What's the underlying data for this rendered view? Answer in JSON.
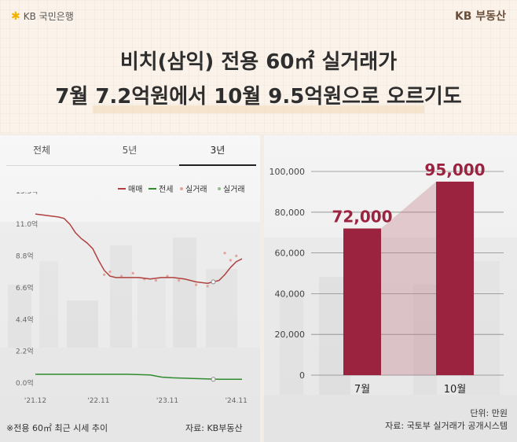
{
  "header": {
    "bank_logo": "KB 국민은행",
    "brand_logo": "KB 부동산",
    "title_line1": "비치(삼익) 전용 60㎡ 실거래가",
    "title_line2": "7월 7.2억원에서 10월 9.5억원으로 오르기도"
  },
  "tabs": [
    "전체",
    "5년",
    "3년"
  ],
  "active_tab": "3년",
  "legend": {
    "items": [
      {
        "label": "매매",
        "color": "#b0413e",
        "style": "line"
      },
      {
        "label": "전세",
        "color": "#2e8b2e",
        "style": "line"
      },
      {
        "label": "실거래",
        "color": "#e3a39a",
        "style": "dot"
      },
      {
        "label": "실거래",
        "color": "#8fbf8f",
        "style": "dot"
      }
    ]
  },
  "left_footer": {
    "note": "※전용 60㎡ 최근 시세 추이",
    "source": "자료: KB부동산"
  },
  "right_footer": {
    "unit": "단위: 만원",
    "source": "자료: 국토부 실거래가 공개시스템"
  },
  "colors": {
    "bar": "#9c2340",
    "bar_label": "#9c2340",
    "sale_line": "#b0413e",
    "jeonse_line": "#2e8b2e"
  },
  "chart_data": [
    {
      "type": "line",
      "yticks": [
        "13.3억",
        "11.0억",
        "8.8억",
        "6.6억",
        "4.4억",
        "2.2억",
        "0.0억"
      ],
      "ytick_values": [
        13.3,
        11.0,
        8.8,
        6.6,
        4.4,
        2.2,
        0.0
      ],
      "xticks": [
        "'21.12",
        "'22.11",
        "'23.11",
        "'24.11"
      ],
      "xtick_positions": [
        0,
        11,
        23,
        35
      ],
      "ylim": [
        0,
        13.3
      ],
      "series": [
        {
          "name": "매매",
          "x": [
            0,
            2,
            4,
            5,
            6,
            7,
            8,
            9,
            10,
            11,
            12,
            13,
            14,
            16,
            18,
            20,
            22,
            24,
            26,
            28,
            30,
            31,
            32,
            33,
            34,
            35,
            36
          ],
          "values": [
            12.2,
            12.1,
            12.0,
            11.9,
            11.5,
            10.9,
            10.5,
            10.2,
            9.8,
            9.0,
            8.3,
            7.9,
            7.8,
            7.8,
            7.8,
            7.7,
            7.8,
            7.8,
            7.7,
            7.5,
            7.4,
            7.5,
            7.6,
            8.0,
            8.5,
            8.9,
            9.1
          ]
        },
        {
          "name": "전세",
          "x": [
            0,
            4,
            8,
            12,
            16,
            20,
            22,
            24,
            28,
            32,
            34,
            36
          ],
          "values": [
            1.1,
            1.1,
            1.1,
            1.1,
            1.1,
            1.05,
            0.9,
            0.85,
            0.8,
            0.75,
            0.75,
            0.75
          ]
        }
      ],
      "highlight_points": [
        {
          "series": "매매",
          "x": 31,
          "value": 7.5
        },
        {
          "series": "전세",
          "x": 31,
          "value": 0.75
        }
      ],
      "transaction_points": [
        {
          "x": 12,
          "value": 8.0
        },
        {
          "x": 13,
          "value": 8.2
        },
        {
          "x": 15,
          "value": 7.9
        },
        {
          "x": 17,
          "value": 8.1
        },
        {
          "x": 19,
          "value": 7.7
        },
        {
          "x": 21,
          "value": 7.6
        },
        {
          "x": 23,
          "value": 7.9
        },
        {
          "x": 25,
          "value": 7.6
        },
        {
          "x": 28,
          "value": 7.3
        },
        {
          "x": 30,
          "value": 7.2
        },
        {
          "x": 33,
          "value": 9.5
        },
        {
          "x": 34,
          "value": 9.0
        },
        {
          "x": 35,
          "value": 9.3
        }
      ]
    },
    {
      "type": "bar",
      "categories": [
        "7월",
        "10월"
      ],
      "values": [
        72000,
        95000
      ],
      "value_labels": [
        "72,000",
        "95,000"
      ],
      "yticks": [
        "100,000",
        "80,000",
        "60,000",
        "40,000",
        "20,000",
        "0"
      ],
      "ytick_values": [
        100000,
        80000,
        60000,
        40000,
        20000,
        0
      ],
      "ylim": [
        0,
        100000
      ],
      "grid": true
    }
  ]
}
